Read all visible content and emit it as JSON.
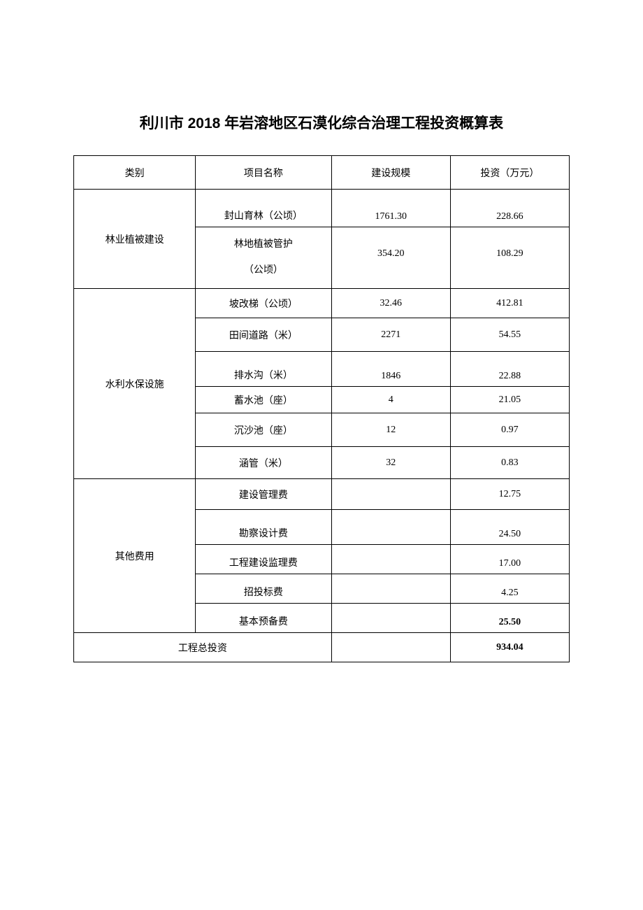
{
  "title": "利川市 2018 年岩溶地区石漠化综合治理工程投资概算表",
  "headers": {
    "category": "类别",
    "item": "项目名称",
    "scale": "建设规模",
    "invest": "投资（万元）"
  },
  "groups": [
    {
      "category": "林业植被建设",
      "rows": [
        {
          "item": "封山育林（公顷）",
          "scale": "1761.30",
          "invest": "228.66",
          "h": "h-54",
          "va": "va-bottom"
        },
        {
          "item_line1": "林地植被管护",
          "item_line2": "（公顷）",
          "scale": "354.20",
          "invest": "108.29",
          "h": "h-88",
          "multi": true
        }
      ]
    },
    {
      "category": "水利水保设施",
      "rows": [
        {
          "item": "坡改梯（公顷）",
          "scale": "32.46",
          "invest": "412.81",
          "h": "h-42"
        },
        {
          "item": "田间道路（米）",
          "scale": "2271",
          "invest": "54.55",
          "h": "h-48"
        },
        {
          "item": "排水沟（米）",
          "scale": "1846",
          "invest": "22.88",
          "h": "h-50",
          "va": "va-bottom"
        },
        {
          "item": "蓄水池（座）",
          "scale": "4",
          "invest": "21.05",
          "h": "h-38"
        },
        {
          "item": "沉沙池（座）",
          "scale": "12",
          "invest": "0.97",
          "h": "h-48"
        },
        {
          "item": "涵管（米）",
          "scale": "32",
          "invest": "0.83",
          "h": "h-46"
        }
      ]
    },
    {
      "category": "其他费用",
      "rows": [
        {
          "item": "建设管理费",
          "scale": "",
          "invest": "12.75",
          "h": "h-44"
        },
        {
          "item": "勘察设计费",
          "scale": "",
          "invest": "24.50",
          "h": "h-50",
          "va": "va-bottom"
        },
        {
          "item": "工程建设监理费",
          "scale": "",
          "invest": "17.00",
          "h": "h-42",
          "va": "va-bottom"
        },
        {
          "item": "招投标费",
          "scale": "",
          "invest": "4.25",
          "h": "h-42",
          "va": "va-bottom"
        },
        {
          "item": "基本预备费",
          "scale": "",
          "invest": "25.50",
          "h": "h-42",
          "va": "va-bottom",
          "bold_invest": true
        }
      ]
    }
  ],
  "total": {
    "label": "工程总投资",
    "scale": "",
    "invest": "934.04"
  }
}
